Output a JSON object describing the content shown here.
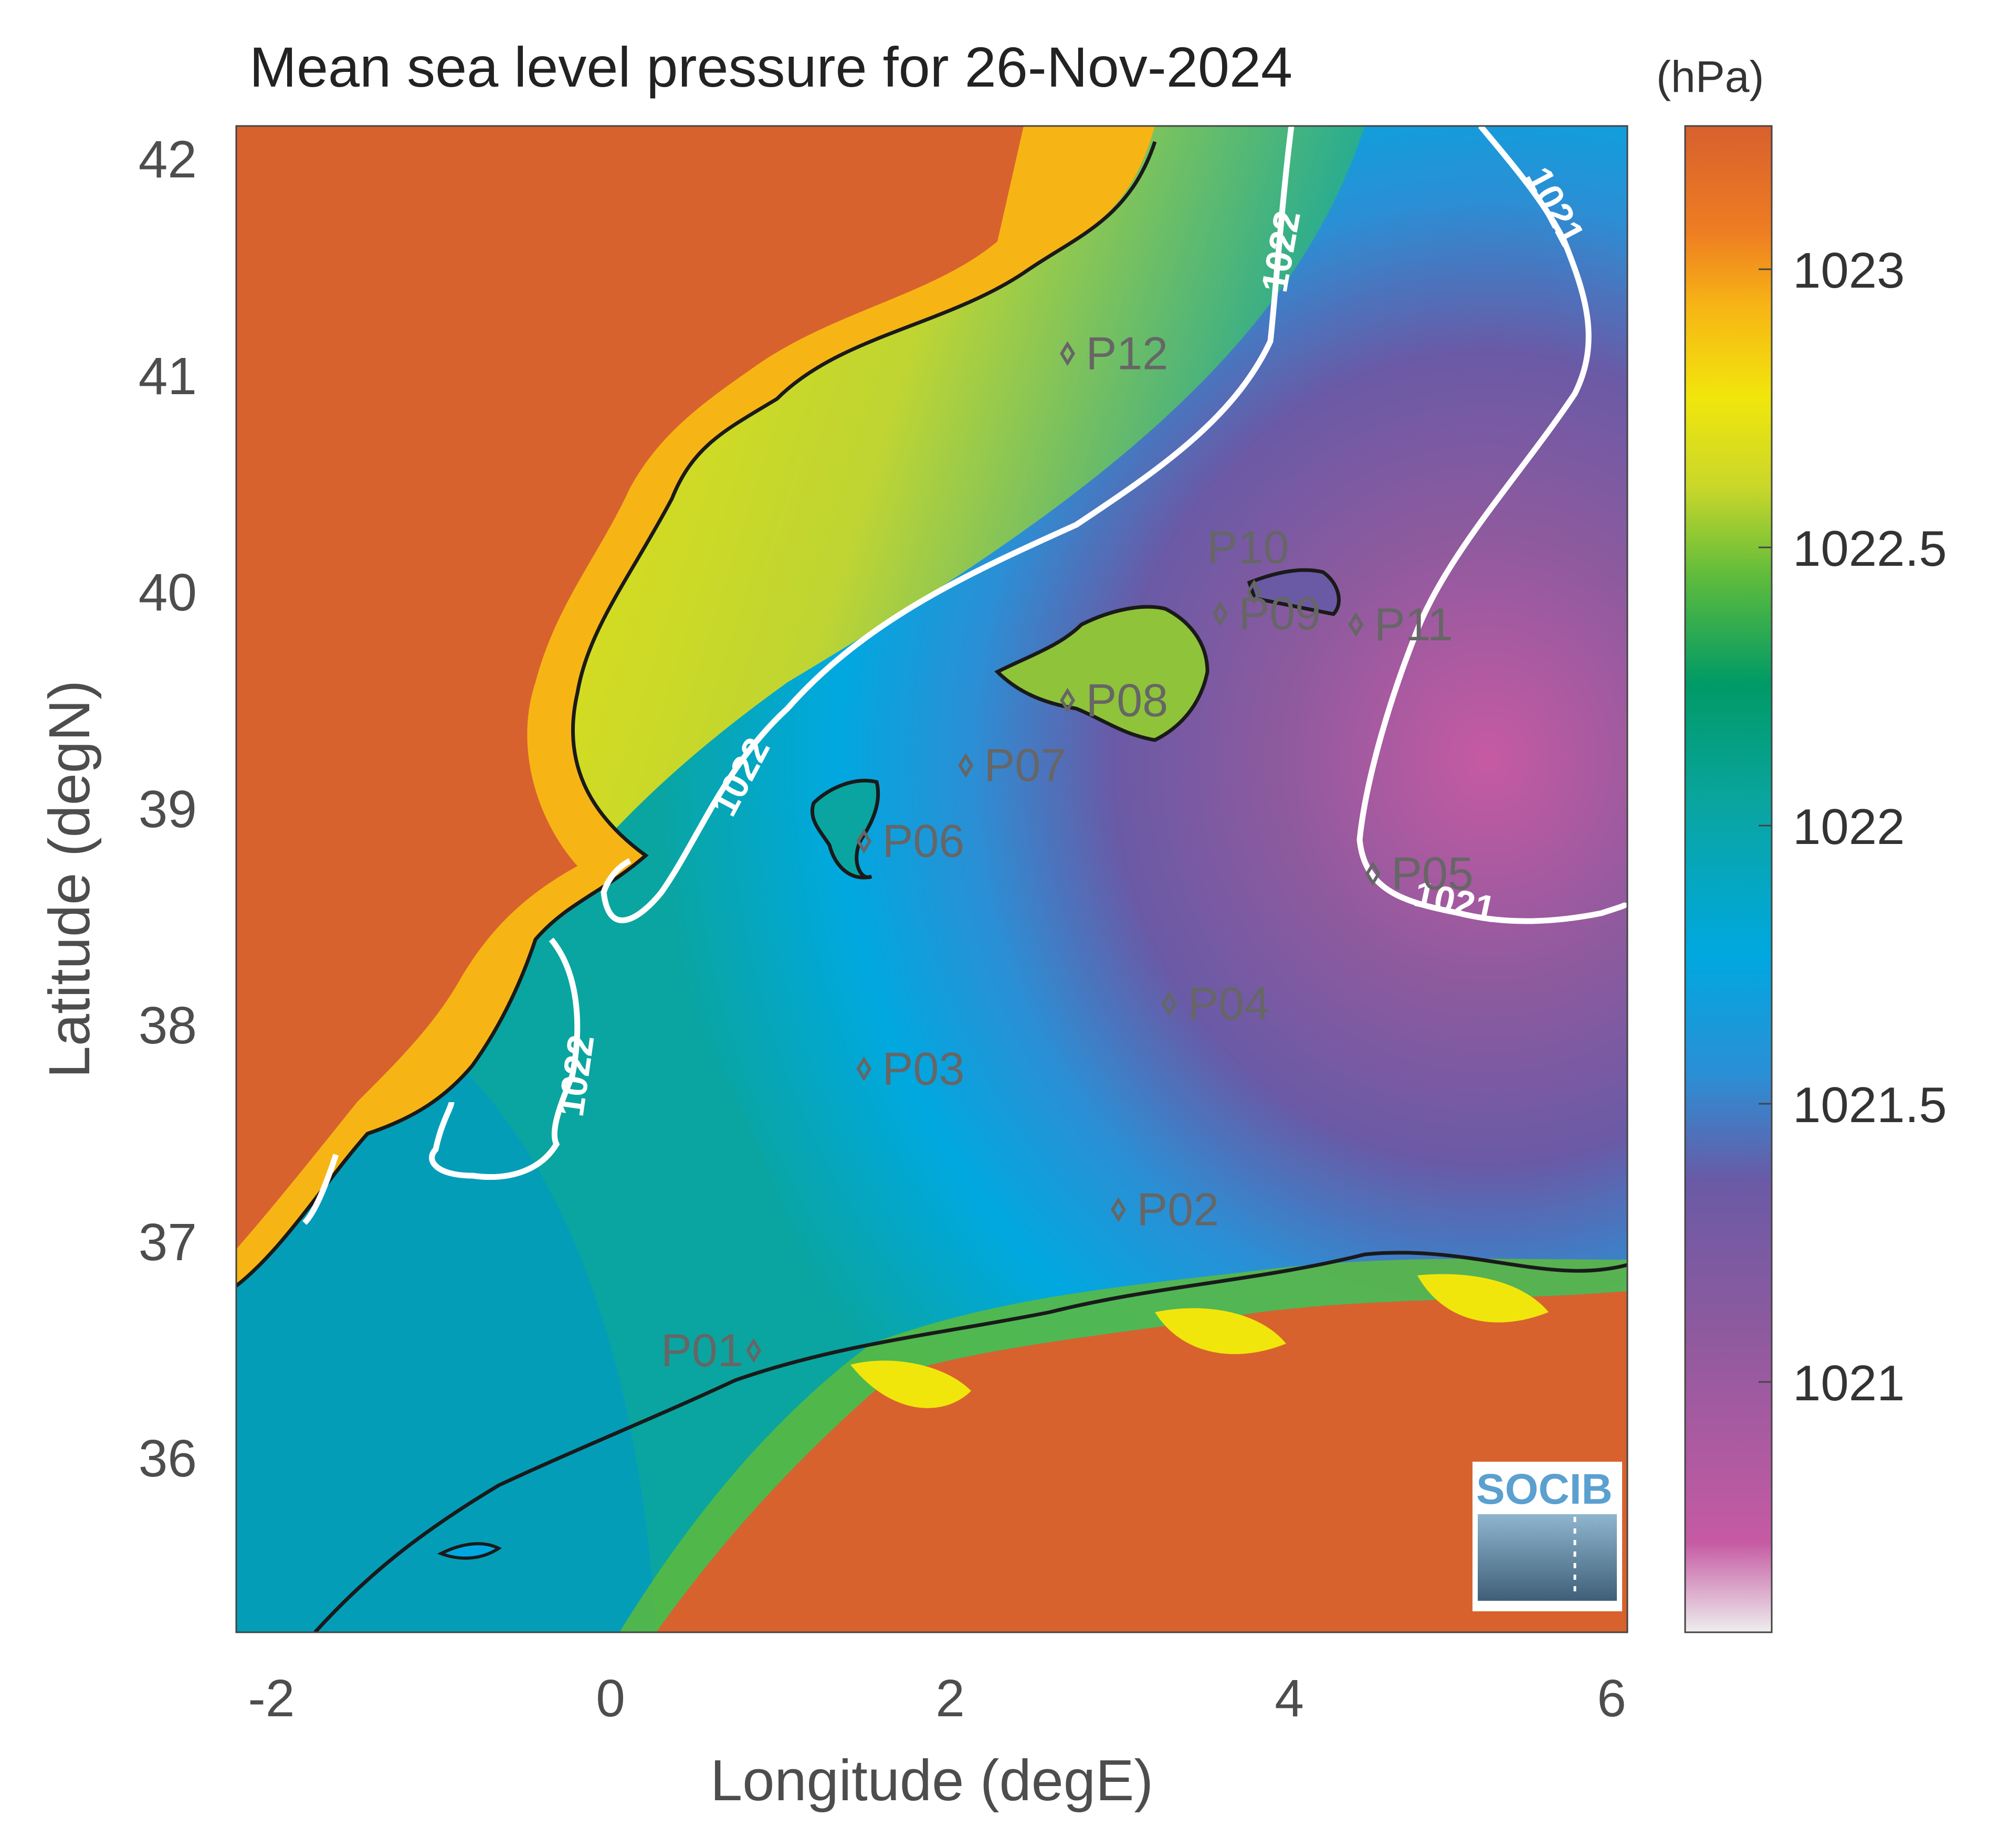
{
  "title": "Mean sea level pressure for 26-Nov-2024",
  "units": "(hPa)",
  "axes": {
    "xlabel": "Longitude (degE)",
    "ylabel": "Latitude (degN)",
    "xticks": [
      "-2",
      "0",
      "2",
      "4",
      "6"
    ],
    "yticks": [
      "42",
      "41",
      "40",
      "39",
      "38",
      "37",
      "36"
    ],
    "xlim": [
      -2.2,
      6.0
    ],
    "ylim": [
      35.2,
      42.15
    ]
  },
  "colorbar": {
    "ticks": [
      "1023",
      "1022.5",
      "1022",
      "1021.5",
      "1021"
    ],
    "range": [
      1020.55,
      1023.25
    ],
    "colors": [
      "#e9c7df",
      "#c65aa3",
      "#8e5a9e",
      "#6a5aa6",
      "#2b8fd5",
      "#00a8e0",
      "#0aa5a0",
      "#009a66",
      "#5dbb3c",
      "#c9d72a",
      "#f1e60c",
      "#f7b515",
      "#ee7d22",
      "#d8602e"
    ]
  },
  "contours": [
    {
      "level": "1022",
      "label": "1022"
    },
    {
      "level": "1021",
      "label": "1021"
    }
  ],
  "points": [
    {
      "id": "P01",
      "lon": 0.85,
      "lat": 36.5
    },
    {
      "id": "P02",
      "lon": 3.0,
      "lat": 37.15
    },
    {
      "id": "P03",
      "lon": 1.5,
      "lat": 37.8
    },
    {
      "id": "P04",
      "lon": 3.3,
      "lat": 38.1
    },
    {
      "id": "P05",
      "lon": 4.5,
      "lat": 38.7
    },
    {
      "id": "P06",
      "lon": 1.5,
      "lat": 38.85
    },
    {
      "id": "P07",
      "lon": 2.1,
      "lat": 39.2
    },
    {
      "id": "P08",
      "lon": 2.7,
      "lat": 39.5
    },
    {
      "id": "P09",
      "lon": 3.6,
      "lat": 39.9
    },
    {
      "id": "P10",
      "lon": 3.8,
      "lat": 40.0
    },
    {
      "id": "P11",
      "lon": 4.4,
      "lat": 39.85
    },
    {
      "id": "P12",
      "lon": 2.7,
      "lat": 41.1
    }
  ],
  "logo": {
    "text": "SOCIB"
  }
}
